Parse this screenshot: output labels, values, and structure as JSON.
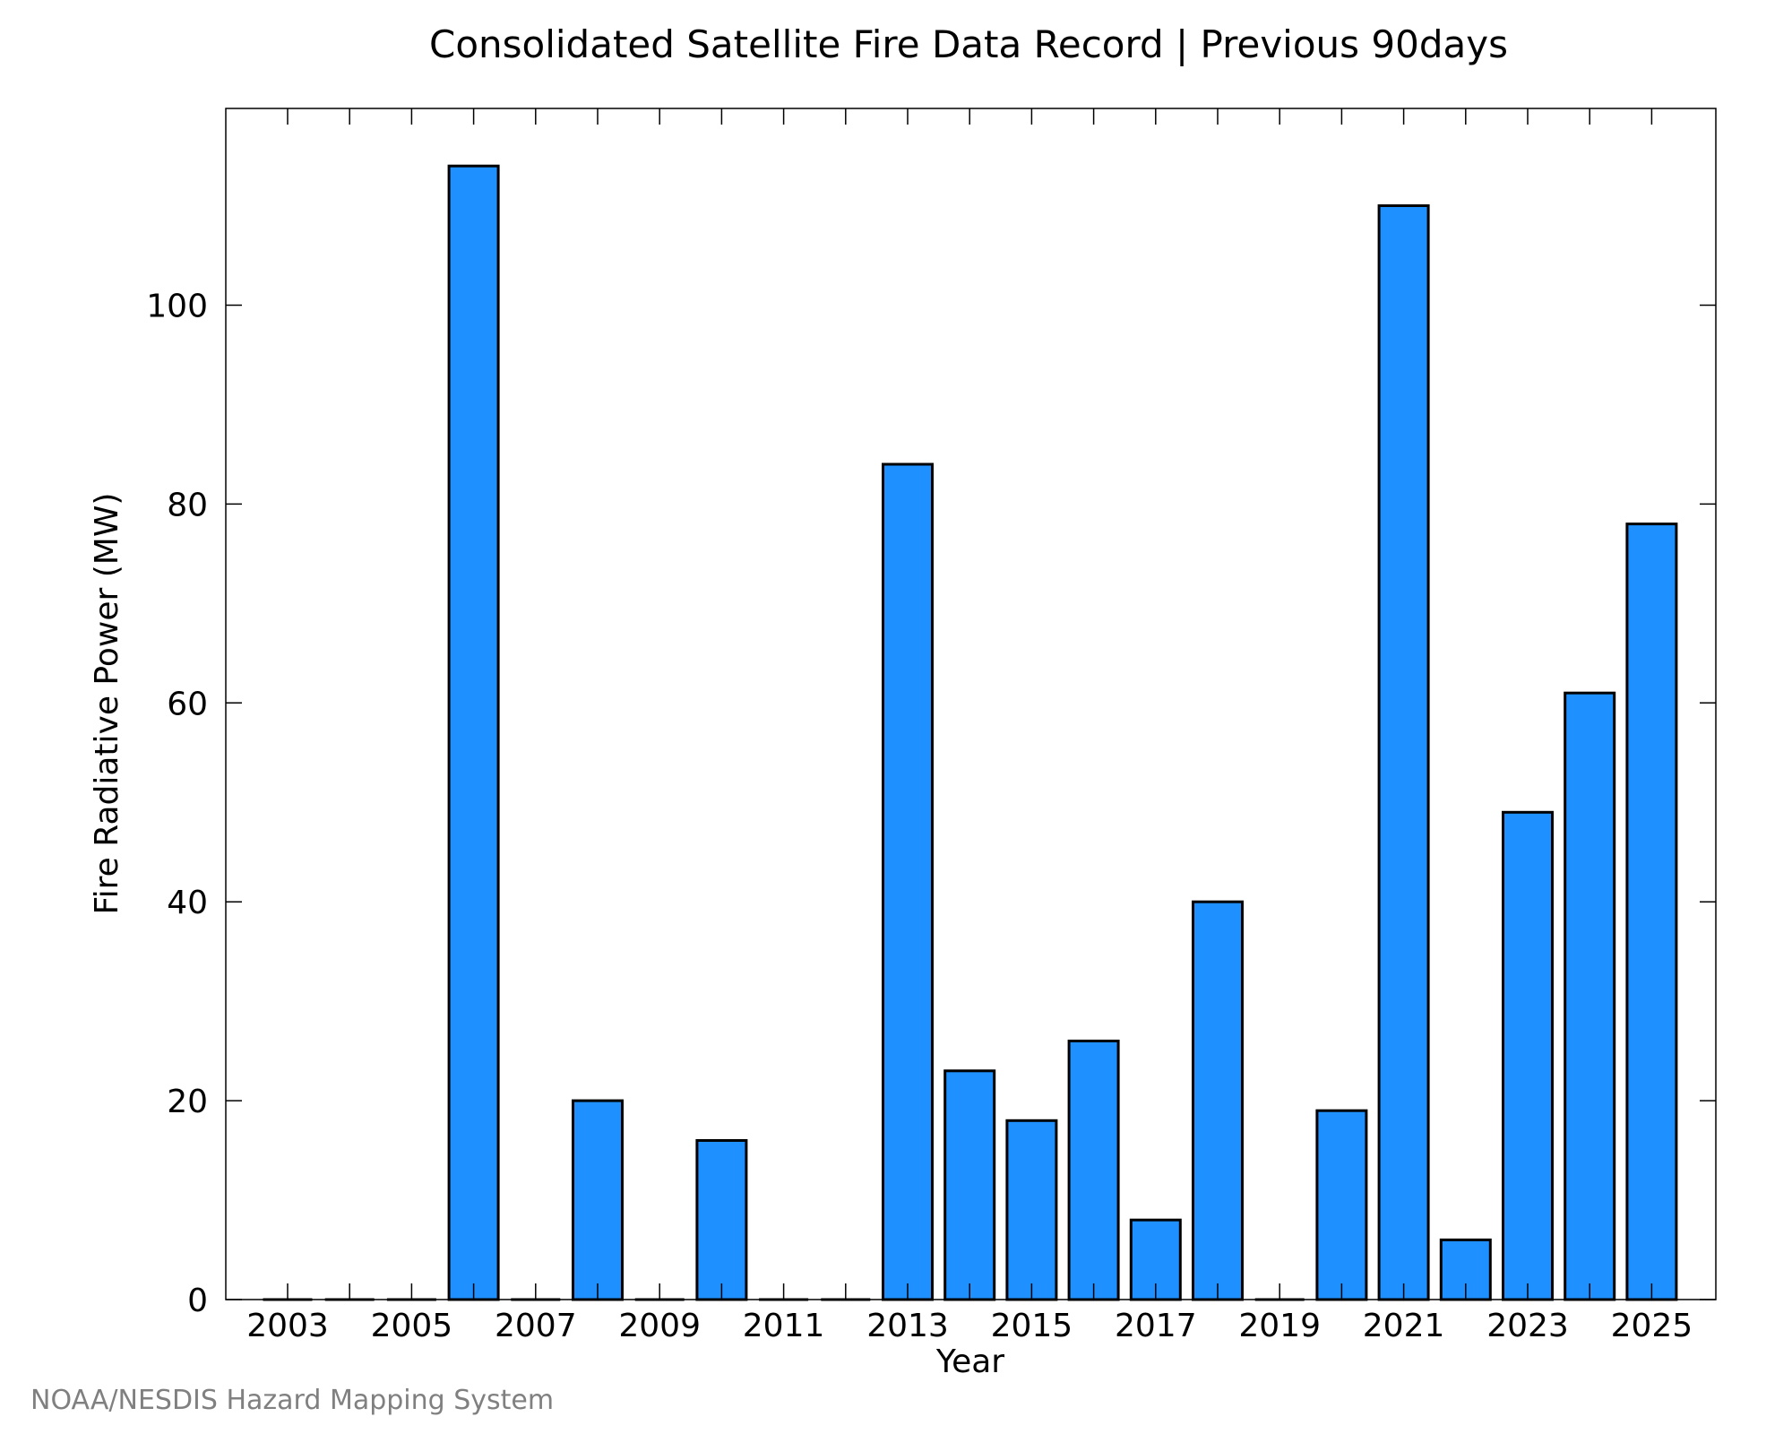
{
  "footer": "NOAA/NESDIS Hazard Mapping System",
  "chart_data": {
    "type": "bar",
    "title": "Consolidated Satellite Fire Data Record | Previous 90days",
    "xlabel": "Year",
    "ylabel": "Fire Radiative Power (MW)",
    "categories": [
      "2003",
      "2004",
      "2005",
      "2006",
      "2007",
      "2008",
      "2009",
      "2010",
      "2011",
      "2012",
      "2013",
      "2014",
      "2015",
      "2016",
      "2017",
      "2018",
      "2019",
      "2020",
      "2021",
      "2022",
      "2023",
      "2024",
      "2025"
    ],
    "values": [
      0,
      0,
      0,
      114,
      0,
      20,
      0,
      16,
      0,
      0,
      84,
      23,
      18,
      26,
      8,
      40,
      0,
      19,
      110,
      6,
      49,
      61,
      78
    ],
    "x_tick_labels": [
      "2003",
      "2005",
      "2007",
      "2009",
      "2011",
      "2013",
      "2015",
      "2017",
      "2019",
      "2021",
      "2023",
      "2025"
    ],
    "y_ticks": [
      0,
      20,
      40,
      60,
      80,
      100
    ],
    "ylim": [
      0,
      120
    ],
    "bar_color": "#1e90ff",
    "grid": false,
    "legend": "none"
  }
}
